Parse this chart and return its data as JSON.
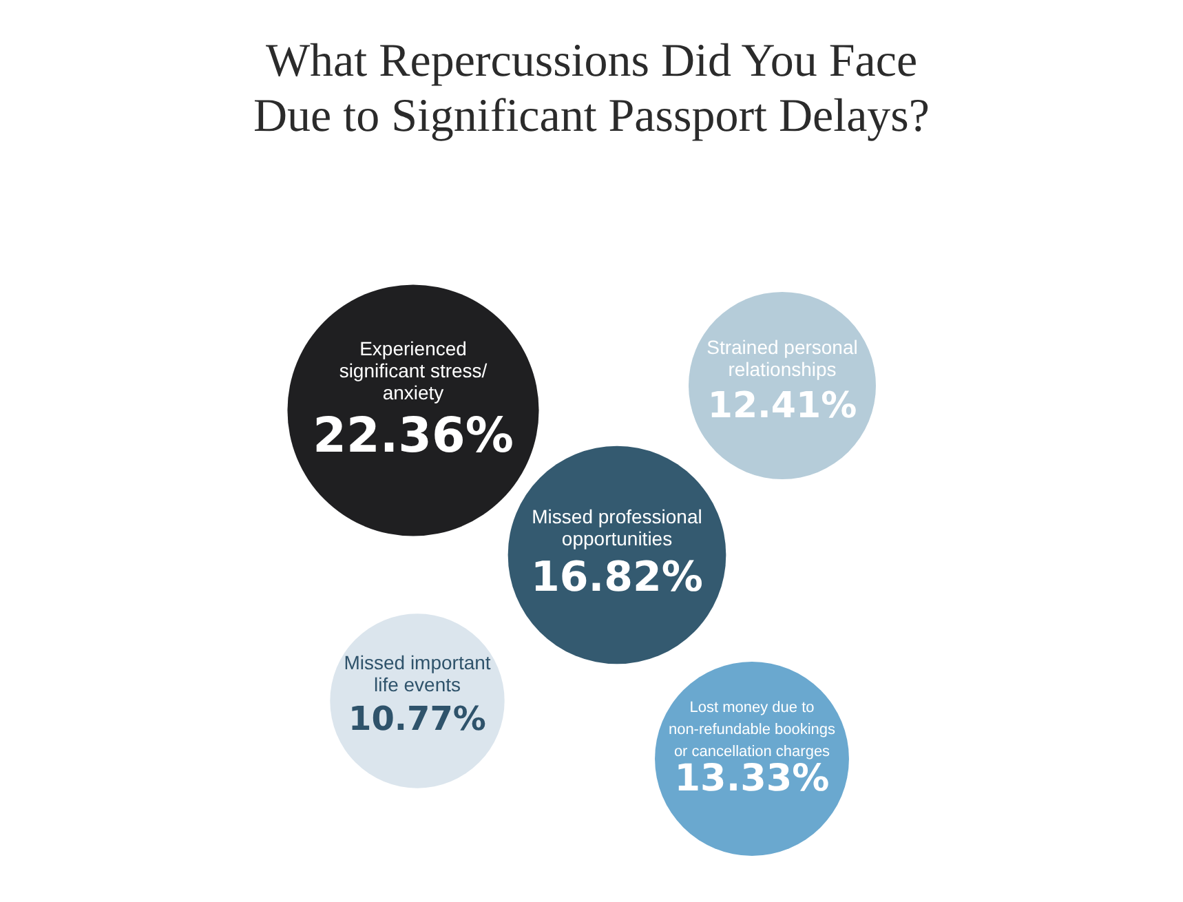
{
  "chart_data": {
    "type": "other",
    "title": "What Repercussions Did You Face Due to Significant Passport Delays?",
    "categories": [
      "Experienced significant stress/ anxiety",
      "Strained personal relationships",
      "Missed professional opportunities",
      "Missed important life events",
      "Lost money due to non-refundable bookings or cancellation charges"
    ],
    "values": [
      22.36,
      12.41,
      16.82,
      10.77,
      13.33
    ],
    "value_labels": [
      "22.36%",
      "12.41%",
      "16.82%",
      "10.77%",
      "13.33%"
    ],
    "colors": [
      "#1f1f21",
      "#b5ccd9",
      "#345a70",
      "#dbe5ed",
      "#6aa8cf"
    ]
  }
}
